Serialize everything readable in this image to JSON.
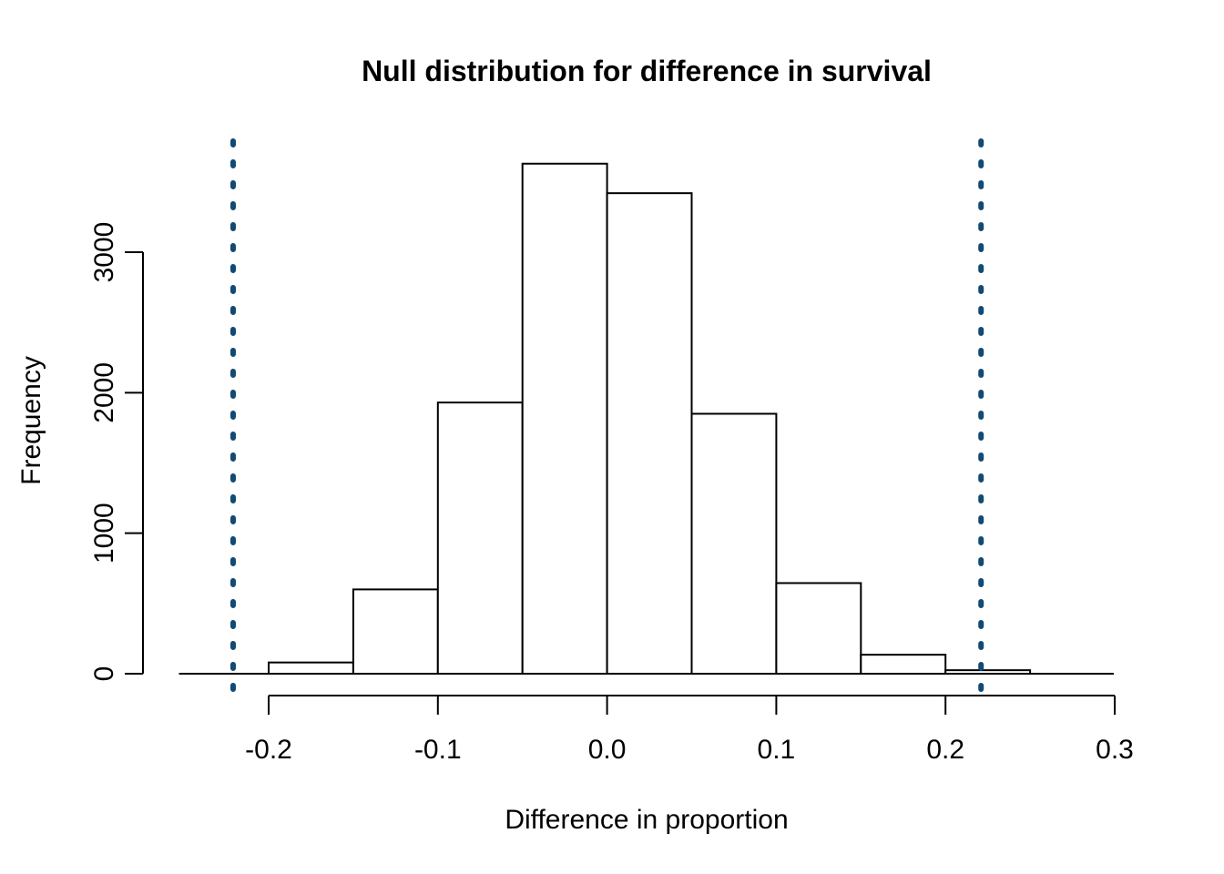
{
  "chart_data": {
    "type": "bar",
    "subtype": "histogram",
    "title": "Null distribution for difference in survival",
    "xlabel": "Difference in proportion",
    "ylabel": "Frequency",
    "bin_edges": [
      -0.2,
      -0.15,
      -0.1,
      -0.05,
      0.0,
      0.05,
      0.1,
      0.15,
      0.2,
      0.25
    ],
    "counts": [
      80,
      600,
      1930,
      3630,
      3420,
      1850,
      645,
      135,
      25
    ],
    "x_ticks": [
      -0.2,
      -0.1,
      0.0,
      0.1,
      0.2,
      0.3
    ],
    "x_tick_labels": [
      "-0.2",
      "-0.1",
      "0.0",
      "0.1",
      "0.2",
      "0.3"
    ],
    "y_ticks": [
      0,
      1000,
      2000,
      3000
    ],
    "y_tick_labels": [
      "0",
      "1000",
      "2000",
      "3000"
    ],
    "xlim": [
      -0.253,
      0.2995
    ],
    "ylim": [
      0,
      3790
    ],
    "grid": false,
    "legend": "none",
    "background": "#ffffff",
    "bar_fill": "#ffffff",
    "bar_stroke": "#000000",
    "axis_color": "#000000",
    "vlines": {
      "values": [
        -0.221,
        0.221
      ],
      "color": "#124a73",
      "style": "dashed"
    }
  }
}
